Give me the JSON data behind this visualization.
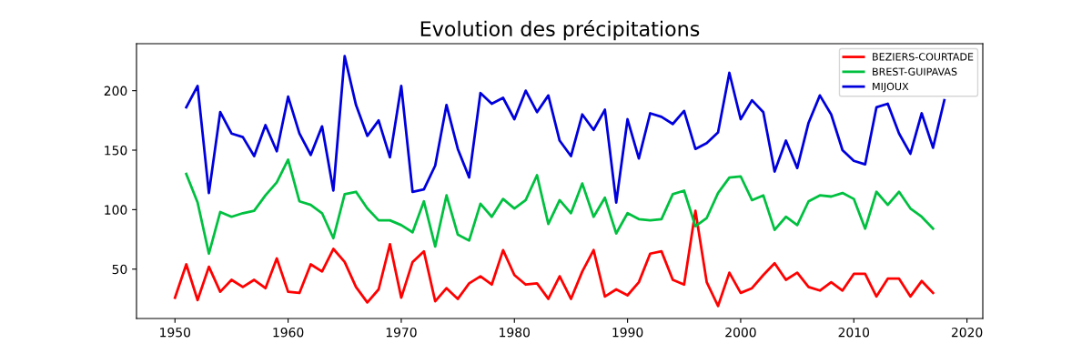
{
  "chart_data": {
    "type": "line",
    "title": "Evolution des précipitations",
    "xlim": [
      1946.6,
      2021.4
    ],
    "xticks": [
      1950,
      1960,
      1970,
      1980,
      1990,
      2000,
      2010,
      2020
    ],
    "ylim": [
      8.5,
      239.5
    ],
    "yticks": [
      50,
      100,
      150,
      200
    ],
    "grid": false,
    "legend": "top right",
    "series": [
      {
        "name": "BEZIERS-COURTADE",
        "color": "#ff0000",
        "x": [
          1950,
          1951,
          1952,
          1953,
          1954,
          1955,
          1956,
          1957,
          1958,
          1959,
          1960,
          1961,
          1962,
          1963,
          1964,
          1965,
          1966,
          1967,
          1968,
          1969,
          1970,
          1971,
          1972,
          1973,
          1974,
          1975,
          1976,
          1977,
          1978,
          1979,
          1980,
          1981,
          1982,
          1983,
          1984,
          1985,
          1986,
          1987,
          1988,
          1989,
          1990,
          1991,
          1992,
          1993,
          1994,
          1995,
          1996,
          1997,
          1998,
          1999,
          2000,
          2001,
          2002,
          2003,
          2004,
          2005,
          2006,
          2007,
          2008,
          2009,
          2010,
          2011,
          2012,
          2013,
          2014,
          2015,
          2016,
          2017
        ],
        "values": [
          26,
          54,
          24,
          52,
          31,
          41,
          35,
          41,
          34,
          59,
          31,
          30,
          54,
          48,
          67,
          56,
          35,
          22,
          33,
          71,
          26,
          56,
          65,
          23,
          34,
          25,
          38,
          44,
          37,
          66,
          45,
          37,
          38,
          25,
          44,
          25,
          48,
          66,
          27,
          33,
          28,
          39,
          63,
          65,
          41,
          37,
          99,
          39,
          19,
          47,
          30,
          34,
          45,
          55,
          41,
          47,
          35,
          32,
          39,
          32,
          46,
          46,
          27,
          42,
          42,
          27,
          40,
          30
        ]
      },
      {
        "name": "BREST-GUIPAVAS",
        "color": "#00c040",
        "x": [
          1951,
          1952,
          1953,
          1954,
          1955,
          1956,
          1957,
          1958,
          1959,
          1960,
          1961,
          1962,
          1963,
          1964,
          1965,
          1966,
          1967,
          1968,
          1969,
          1970,
          1971,
          1972,
          1973,
          1974,
          1975,
          1976,
          1977,
          1978,
          1979,
          1980,
          1981,
          1982,
          1983,
          1984,
          1985,
          1986,
          1987,
          1988,
          1989,
          1990,
          1991,
          1992,
          1993,
          1994,
          1995,
          1996,
          1997,
          1998,
          1999,
          2000,
          2001,
          2002,
          2003,
          2004,
          2005,
          2006,
          2007,
          2008,
          2009,
          2010,
          2011,
          2012,
          2013,
          2014,
          2015,
          2016,
          2017
        ],
        "values": [
          130,
          106,
          63,
          98,
          94,
          97,
          99,
          112,
          123,
          142,
          107,
          104,
          97,
          76,
          113,
          115,
          101,
          91,
          91,
          87,
          81,
          107,
          69,
          112,
          79,
          74,
          105,
          94,
          109,
          101,
          108,
          129,
          88,
          108,
          97,
          122,
          94,
          110,
          80,
          97,
          92,
          91,
          92,
          113,
          116,
          86,
          93,
          114,
          127,
          128,
          108,
          112,
          83,
          94,
          87,
          107,
          112,
          111,
          114,
          109,
          84,
          115,
          104,
          115,
          101,
          94,
          84
        ]
      },
      {
        "name": "MIJOUX",
        "color": "#0000dd",
        "x": [
          1951,
          1952,
          1953,
          1954,
          1955,
          1956,
          1957,
          1958,
          1959,
          1960,
          1961,
          1962,
          1963,
          1964,
          1965,
          1966,
          1967,
          1968,
          1969,
          1970,
          1971,
          1972,
          1973,
          1974,
          1975,
          1976,
          1977,
          1978,
          1979,
          1980,
          1981,
          1982,
          1983,
          1984,
          1985,
          1986,
          1987,
          1988,
          1989,
          1990,
          1991,
          1992,
          1993,
          1994,
          1995,
          1996,
          1997,
          1998,
          1999,
          2000,
          2001,
          2002,
          2003,
          2004,
          2005,
          2006,
          2007,
          2008,
          2009,
          2010,
          2011,
          2012,
          2013,
          2014,
          2015,
          2016,
          2017,
          2018
        ],
        "values": [
          186,
          204,
          114,
          182,
          164,
          161,
          145,
          171,
          149,
          195,
          164,
          146,
          170,
          116,
          229,
          188,
          162,
          175,
          144,
          204,
          115,
          117,
          137,
          188,
          151,
          127,
          198,
          189,
          194,
          176,
          200,
          182,
          196,
          158,
          145,
          180,
          167,
          184,
          106,
          176,
          143,
          181,
          178,
          172,
          183,
          151,
          156,
          165,
          215,
          176,
          192,
          182,
          132,
          158,
          135,
          173,
          196,
          180,
          150,
          141,
          138,
          186,
          189,
          164,
          147,
          181,
          152,
          192
        ]
      }
    ]
  }
}
